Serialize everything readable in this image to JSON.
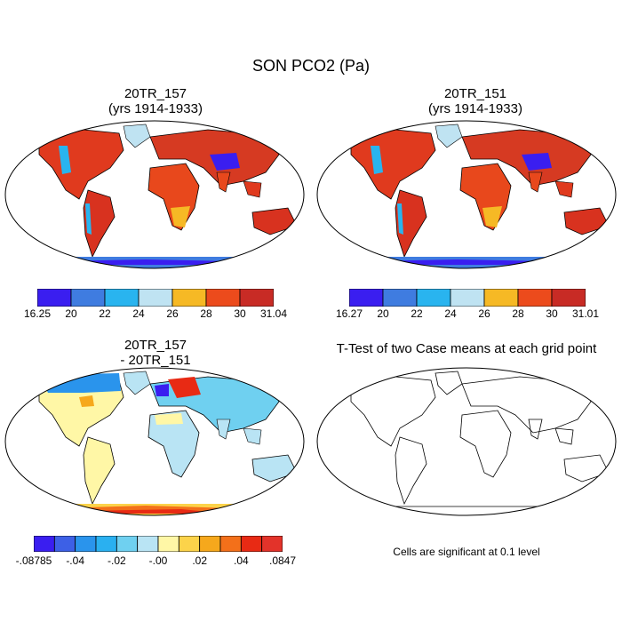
{
  "title": "SON PCO2 (Pa)",
  "panels": [
    {
      "title_line1": "20TR_157",
      "title_line2": "(yrs 1914-1933)"
    },
    {
      "title_line1": "20TR_151",
      "title_line2": "(yrs 1914-1933)"
    },
    {
      "title_line1": "20TR_157",
      "title_line2": "- 20TR_151"
    },
    {
      "title_line1": "T-Test of two Case means at each grid point",
      "title_line2": ""
    }
  ],
  "colorbars": [
    {
      "colors": [
        "#3a1ef0",
        "#3f7ce0",
        "#29b4ef",
        "#bfe3f2",
        "#f6b925",
        "#ec4b1c",
        "#c82b25"
      ],
      "labels": [
        "16.25",
        "20",
        "22",
        "24",
        "26",
        "28",
        "30",
        "31.04"
      ]
    },
    {
      "colors": [
        "#3a1ef0",
        "#3f7ce0",
        "#29b4ef",
        "#bfe3f2",
        "#f6b925",
        "#ec4b1c",
        "#c82b25"
      ],
      "labels": [
        "16.27",
        "20",
        "22",
        "24",
        "26",
        "28",
        "30",
        "31.01"
      ]
    },
    {
      "colors": [
        "#3a1ef0",
        "#3d60e6",
        "#2a94ec",
        "#2ab0f0",
        "#6fd0f0",
        "#b9e4f4",
        "#fff7a6",
        "#fcd34a",
        "#f6a81c",
        "#f3701a",
        "#e82a14",
        "#e3332a"
      ],
      "labels": [
        "-.08785",
        "-.04",
        "-.02",
        "-.00",
        ".02",
        ".04",
        ".0847"
      ]
    }
  ],
  "note": "Cells are significant at 0.1 level"
}
